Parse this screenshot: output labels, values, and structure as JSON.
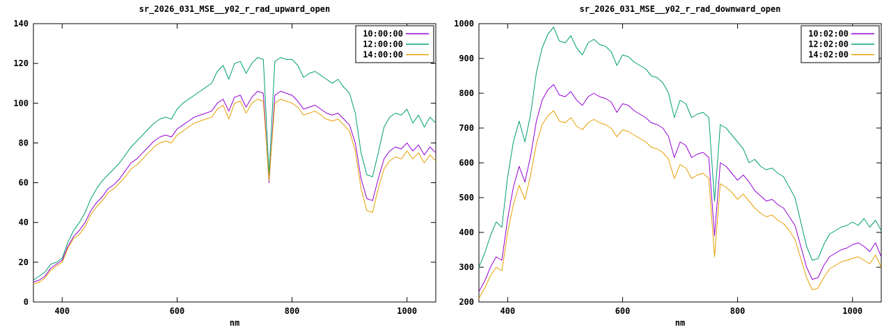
{
  "page": {
    "background": "#ffffff",
    "border_color": "#000000",
    "text_color": "#000000"
  },
  "chart_data": [
    {
      "type": "line",
      "title": "sr_2026_031_MSE__y02_r_rad_upward_open",
      "xlabel": "nm",
      "ylabel": "",
      "xlim": [
        350,
        1050
      ],
      "ylim": [
        0,
        140
      ],
      "xticks": [
        400,
        600,
        800,
        1000
      ],
      "yticks": [
        0,
        20,
        40,
        60,
        80,
        100,
        120,
        140
      ],
      "grid": false,
      "legend_position": "top-right",
      "x": [
        350,
        360,
        370,
        380,
        390,
        400,
        410,
        420,
        430,
        440,
        450,
        460,
        470,
        480,
        490,
        500,
        510,
        520,
        530,
        540,
        550,
        560,
        570,
        580,
        590,
        600,
        610,
        620,
        630,
        640,
        650,
        660,
        670,
        680,
        690,
        700,
        710,
        720,
        730,
        740,
        750,
        760,
        770,
        780,
        790,
        800,
        810,
        820,
        830,
        840,
        850,
        860,
        870,
        880,
        890,
        900,
        910,
        920,
        930,
        940,
        950,
        960,
        970,
        980,
        990,
        1000,
        1010,
        1020,
        1030,
        1040,
        1050
      ],
      "series": [
        {
          "name": "10:00:00",
          "color": "#9400d3",
          "values": [
            10,
            11,
            13,
            17,
            19,
            21,
            28,
            33,
            36,
            40,
            46,
            50,
            53,
            57,
            59,
            62,
            66,
            70,
            72,
            75,
            78,
            81,
            83,
            84,
            83,
            87,
            89,
            91,
            93,
            94,
            95,
            96,
            100,
            102,
            96,
            103,
            104,
            98,
            103,
            106,
            105,
            60,
            104,
            106,
            105,
            104,
            101,
            97,
            98,
            99,
            97,
            95,
            94,
            95,
            92,
            89,
            80,
            62,
            52,
            51,
            62,
            72,
            76,
            78,
            77,
            80,
            76,
            79,
            74,
            78,
            75
          ]
        },
        {
          "name": "12:00:00",
          "color": "#009e73",
          "values": [
            11,
            13,
            15,
            19,
            20,
            22,
            30,
            36,
            40,
            45,
            52,
            57,
            61,
            64,
            67,
            70,
            74,
            78,
            81,
            84,
            87,
            90,
            92,
            93,
            92,
            97,
            100,
            102,
            104,
            106,
            108,
            110,
            116,
            119,
            112,
            120,
            121,
            115,
            120,
            123,
            122,
            64,
            121,
            123,
            122,
            122,
            119,
            113,
            115,
            116,
            114,
            112,
            110,
            112,
            108,
            105,
            95,
            75,
            64,
            63,
            75,
            88,
            93,
            95,
            94,
            97,
            90,
            94,
            88,
            93,
            90
          ]
        },
        {
          "name": "14:00:00",
          "color": "#e69f00",
          "values": [
            9,
            10,
            12,
            16,
            18,
            20,
            27,
            32,
            34,
            38,
            44,
            48,
            51,
            55,
            57,
            60,
            63,
            67,
            69,
            72,
            75,
            78,
            80,
            81,
            80,
            84,
            86,
            88,
            90,
            91,
            92,
            93,
            97,
            99,
            92,
            100,
            101,
            95,
            100,
            102,
            101,
            61,
            100,
            102,
            101,
            100,
            98,
            94,
            95,
            96,
            94,
            92,
            91,
            92,
            89,
            86,
            76,
            57,
            46,
            45,
            57,
            67,
            71,
            73,
            72,
            76,
            72,
            75,
            70,
            74,
            71
          ]
        }
      ]
    },
    {
      "type": "line",
      "title": "sr_2026_031_MSE__y02_r_rad_downward_open",
      "xlabel": "nm",
      "ylabel": "",
      "xlim": [
        350,
        1050
      ],
      "ylim": [
        200,
        1000
      ],
      "xticks": [
        400,
        600,
        800,
        1000
      ],
      "yticks": [
        200,
        300,
        400,
        500,
        600,
        700,
        800,
        900,
        1000
      ],
      "grid": false,
      "legend_position": "top-right",
      "x": [
        350,
        360,
        370,
        380,
        390,
        400,
        410,
        420,
        430,
        440,
        450,
        460,
        470,
        480,
        490,
        500,
        510,
        520,
        530,
        540,
        550,
        560,
        570,
        580,
        590,
        600,
        610,
        620,
        630,
        640,
        650,
        660,
        670,
        680,
        690,
        700,
        710,
        720,
        730,
        740,
        750,
        760,
        770,
        780,
        790,
        800,
        810,
        820,
        830,
        840,
        850,
        860,
        870,
        880,
        890,
        900,
        910,
        920,
        930,
        940,
        950,
        960,
        970,
        980,
        990,
        1000,
        1010,
        1020,
        1030,
        1040,
        1050
      ],
      "series": [
        {
          "name": "10:02:00",
          "color": "#9400d3",
          "values": [
            230,
            260,
            300,
            330,
            320,
            440,
            530,
            590,
            545,
            620,
            720,
            780,
            810,
            825,
            795,
            790,
            805,
            780,
            765,
            790,
            800,
            790,
            785,
            775,
            745,
            770,
            765,
            750,
            740,
            730,
            715,
            710,
            700,
            675,
            615,
            660,
            650,
            615,
            625,
            630,
            615,
            390,
            600,
            590,
            570,
            550,
            565,
            545,
            520,
            505,
            490,
            495,
            480,
            470,
            445,
            420,
            360,
            300,
            265,
            270,
            305,
            330,
            340,
            350,
            355,
            365,
            370,
            360,
            345,
            370,
            330
          ]
        },
        {
          "name": "12:02:00",
          "color": "#009e73",
          "values": [
            300,
            340,
            390,
            430,
            415,
            560,
            660,
            720,
            660,
            740,
            860,
            930,
            970,
            990,
            950,
            945,
            965,
            930,
            910,
            945,
            955,
            940,
            935,
            920,
            880,
            910,
            905,
            890,
            880,
            870,
            850,
            845,
            830,
            800,
            730,
            780,
            770,
            730,
            740,
            745,
            730,
            490,
            710,
            700,
            680,
            660,
            640,
            600,
            610,
            590,
            580,
            585,
            570,
            560,
            530,
            500,
            430,
            360,
            320,
            325,
            365,
            395,
            405,
            415,
            420,
            430,
            420,
            440,
            415,
            435,
            405
          ]
        },
        {
          "name": "14:02:00",
          "color": "#e69f00",
          "values": [
            210,
            240,
            275,
            300,
            290,
            400,
            480,
            535,
            495,
            565,
            655,
            710,
            735,
            750,
            720,
            715,
            730,
            705,
            695,
            715,
            725,
            715,
            710,
            700,
            675,
            695,
            690,
            680,
            670,
            660,
            645,
            640,
            630,
            610,
            555,
            595,
            585,
            555,
            565,
            570,
            555,
            330,
            540,
            530,
            515,
            495,
            510,
            490,
            470,
            455,
            445,
            450,
            435,
            425,
            405,
            380,
            325,
            270,
            235,
            240,
            270,
            295,
            305,
            315,
            320,
            325,
            330,
            320,
            310,
            335,
            300
          ]
        }
      ]
    }
  ]
}
